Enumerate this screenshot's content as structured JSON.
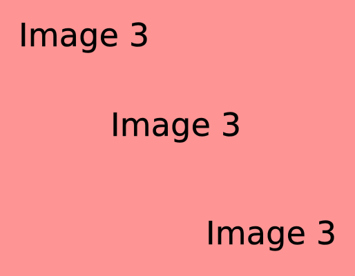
{
  "background_color": "#ff9494",
  "text_color": "#000000",
  "labels": [
    {
      "text": "Image 3"
    },
    {
      "text": "Image 3"
    },
    {
      "text": "Image 3"
    }
  ]
}
